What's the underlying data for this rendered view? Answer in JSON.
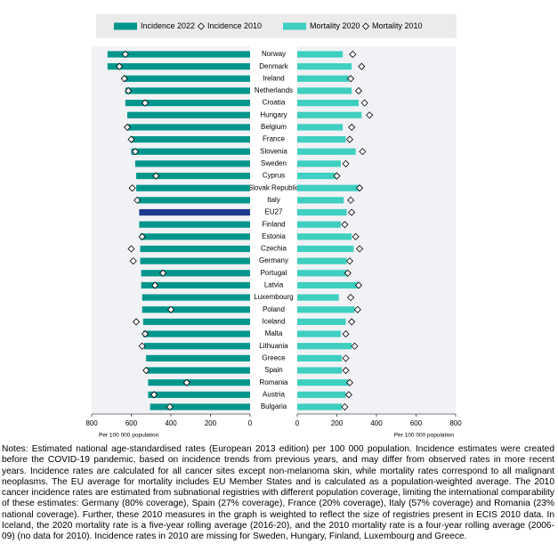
{
  "chart_data": [
    {
      "type": "bar",
      "orientation": "horizontal",
      "categories": [
        "Norway",
        "Denmark",
        "Ireland",
        "Netherlands",
        "Croatia",
        "Hungary",
        "Belgium",
        "France",
        "Slovenia",
        "Sweden",
        "Cyprus",
        "Slovak Republic",
        "Italy",
        "EU27",
        "Finland",
        "Estonia",
        "Czechia",
        "Germany",
        "Portugal",
        "Latvia",
        "Luxembourg",
        "Poland",
        "Iceland",
        "Malta",
        "Lithuania",
        "Greece",
        "Spain",
        "Romania",
        "Austria",
        "Bulgaria"
      ],
      "series": [
        {
          "name": "Incidence 2022",
          "color": "#00968c",
          "colors": [
            "#00968c",
            "#00968c",
            "#00968c",
            "#00968c",
            "#00968c",
            "#00968c",
            "#00968c",
            "#00968c",
            "#00968c",
            "#00968c",
            "#00968c",
            "#00968c",
            "#00968c",
            "#1b3a8c",
            "#00968c",
            "#00968c",
            "#00968c",
            "#00968c",
            "#00968c",
            "#00968c",
            "#00968c",
            "#00968c",
            "#00968c",
            "#00968c",
            "#00968c",
            "#00968c",
            "#00968c",
            "#00968c",
            "#00968c",
            "#00968c"
          ],
          "values": [
            720,
            720,
            640,
            630,
            630,
            620,
            620,
            605,
            600,
            580,
            575,
            575,
            565,
            560,
            560,
            555,
            555,
            555,
            550,
            550,
            545,
            545,
            540,
            540,
            535,
            525,
            525,
            515,
            515,
            505
          ]
        },
        {
          "name": "Incidence 2010",
          "marker": "diamond",
          "color": "#ffffff",
          "values": [
            630,
            660,
            635,
            615,
            530,
            null,
            620,
            600,
            580,
            null,
            475,
            595,
            570,
            null,
            null,
            545,
            600,
            590,
            440,
            480,
            null,
            400,
            575,
            530,
            545,
            null,
            525,
            320,
            485,
            405
          ]
        }
      ],
      "xlim": [
        800,
        0
      ],
      "xticks": [
        0,
        200,
        400,
        600,
        800
      ],
      "xlabel": "Per 100 000 population"
    },
    {
      "type": "bar",
      "orientation": "horizontal",
      "series": [
        {
          "name": "Mortality 2020",
          "color": "#3ecfc0",
          "values": [
            230,
            275,
            260,
            275,
            310,
            325,
            230,
            245,
            295,
            220,
            195,
            315,
            235,
            250,
            220,
            275,
            285,
            250,
            250,
            305,
            210,
            290,
            245,
            220,
            275,
            225,
            225,
            260,
            245,
            225
          ]
        },
        {
          "name": "Mortality 2010",
          "marker": "diamond",
          "color": "#ffffff",
          "values": [
            280,
            325,
            270,
            310,
            340,
            365,
            275,
            265,
            330,
            245,
            200,
            315,
            270,
            275,
            240,
            295,
            315,
            265,
            255,
            310,
            270,
            305,
            275,
            245,
            290,
            245,
            245,
            265,
            260,
            240
          ]
        }
      ],
      "xlim": [
        0,
        800
      ],
      "xticks": [
        0,
        200,
        400,
        600,
        800
      ],
      "xlabel": "Per 100 000 population"
    }
  ],
  "notes": "Notes: Estimated national age-standardised rates (European 2013 edition) per 100 000 population. Incidence estimates were created before the COVID-19 pandemic, based on incidence trends from previous years, and may differ from observed rates in more recent years. Incidence rates are calculated for all cancer sites except non-melanoma skin, while mortality rates correspond to all malignant neoplasms. The EU average for mortality includes EU Member States and is calculated as a population-weighted average. The 2010 cancer incidence rates are estimated from subnational registries with different population coverage, limiting the international comparability of these estimates: Germany (80% coverage), Spain (27% coverage), France (20% coverage), Italy (57% coverage) and Romania (23% national coverage). Further, these 2010 measures in the graph is weighted to reflect the size of registries present in ECIS 2010 data. In Iceland, the 2020 mortality rate is a five-year rolling average (2016-20), and the 2010 mortality rate is a four-year rolling average (2006-09) (no data for 2010). Incidence rates in 2010 are missing for Sweden, Hungary, Finland, Luxembourg and Greece."
}
